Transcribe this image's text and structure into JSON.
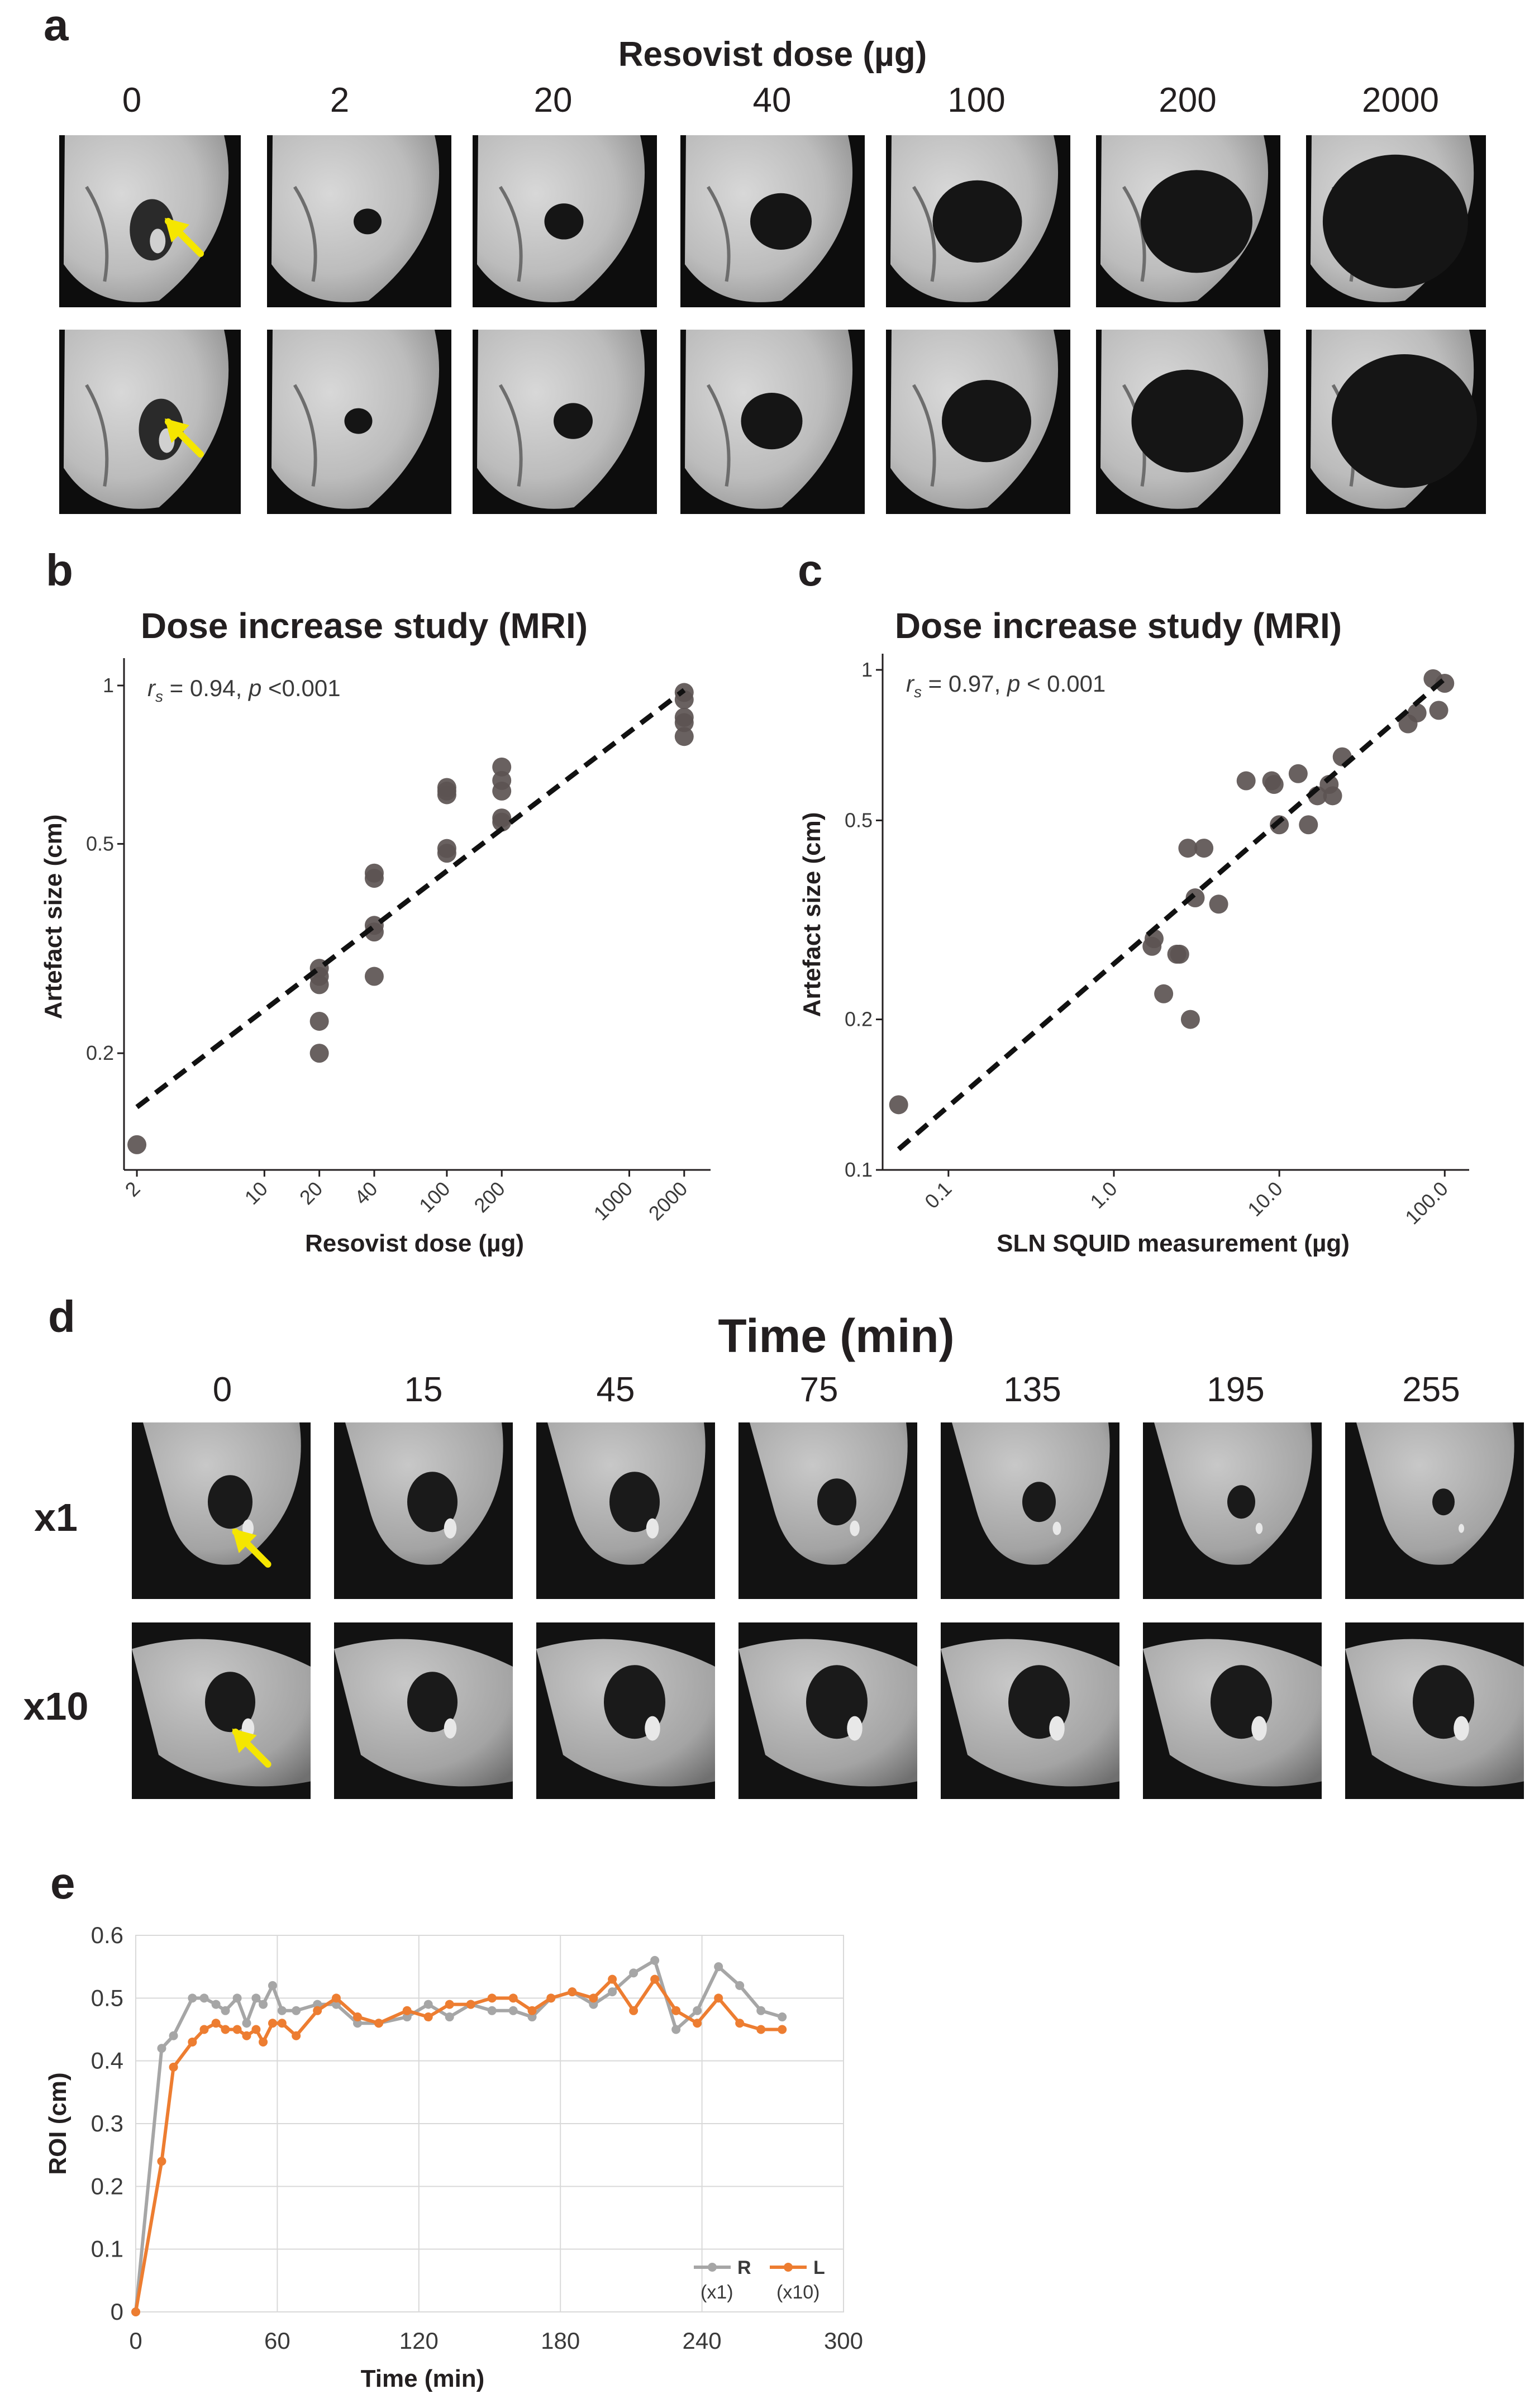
{
  "panel_a": {
    "letter": "a",
    "title": "Resovist dose (µg)",
    "columns": [
      "0",
      "2",
      "20",
      "40",
      "100",
      "200",
      "2000"
    ]
  },
  "panel_d": {
    "letter": "d",
    "title": "Time (min)",
    "columns": [
      "0",
      "15",
      "45",
      "75",
      "135",
      "195",
      "255"
    ],
    "rows": [
      "x1",
      "x10"
    ]
  },
  "chart_data": [
    {
      "id": "b",
      "letter": "b",
      "type": "scatter",
      "title": "Dose increase study (MRI)",
      "xlabel": "Resovist dose (µg)",
      "ylabel": "Artefact size (cm)",
      "xscale": "log",
      "yscale": "log",
      "xlim": [
        1.7,
        2600
      ],
      "ylim": [
        0.12,
        1.1
      ],
      "xticks": [
        2,
        10,
        20,
        40,
        100,
        200,
        1000,
        2000
      ],
      "xtick_labels": [
        "2",
        "10",
        "20",
        "40",
        "100",
        "200",
        "1000",
        "2000"
      ],
      "yticks": [
        0.2,
        0.5,
        1
      ],
      "ytick_labels": [
        "0.2",
        "0.5",
        "1"
      ],
      "annotation": {
        "r_symbol": "r",
        "r_sub": "s",
        "r_text": " = 0.94, ",
        "p_symbol": "p",
        "p_text": " <0.001"
      },
      "fit_line": {
        "x": [
          2,
          2000
        ],
        "y": [
          0.158,
          0.98
        ]
      },
      "points": [
        {
          "x": 2,
          "y": 0.134
        },
        {
          "x": 20,
          "y": 0.2
        },
        {
          "x": 20,
          "y": 0.23
        },
        {
          "x": 20,
          "y": 0.27
        },
        {
          "x": 20,
          "y": 0.28
        },
        {
          "x": 20,
          "y": 0.29
        },
        {
          "x": 40,
          "y": 0.28
        },
        {
          "x": 40,
          "y": 0.34
        },
        {
          "x": 40,
          "y": 0.35
        },
        {
          "x": 40,
          "y": 0.43
        },
        {
          "x": 40,
          "y": 0.44
        },
        {
          "x": 100,
          "y": 0.48
        },
        {
          "x": 100,
          "y": 0.49
        },
        {
          "x": 100,
          "y": 0.62
        },
        {
          "x": 100,
          "y": 0.63
        },
        {
          "x": 100,
          "y": 0.64
        },
        {
          "x": 200,
          "y": 0.55
        },
        {
          "x": 200,
          "y": 0.56
        },
        {
          "x": 200,
          "y": 0.63
        },
        {
          "x": 200,
          "y": 0.66
        },
        {
          "x": 200,
          "y": 0.7
        },
        {
          "x": 2000,
          "y": 0.8
        },
        {
          "x": 2000,
          "y": 0.85
        },
        {
          "x": 2000,
          "y": 0.87
        },
        {
          "x": 2000,
          "y": 0.94
        },
        {
          "x": 2000,
          "y": 0.97
        }
      ]
    },
    {
      "id": "c",
      "letter": "c",
      "type": "scatter",
      "title": "Dose increase study (MRI)",
      "xlabel": "SLN SQUID measurement (µg)",
      "ylabel": "Artefact size (cm)",
      "xscale": "log",
      "yscale": "log",
      "xlim": [
        0.04,
        130
      ],
      "ylim": [
        0.1,
        1.05
      ],
      "xticks": [
        0.1,
        1.0,
        10.0,
        100.0
      ],
      "xtick_labels": [
        "0.1",
        "1.0",
        "10.0",
        "100.0"
      ],
      "yticks": [
        0.1,
        0.2,
        0.5,
        1
      ],
      "ytick_labels": [
        "0.1",
        "0.2",
        "0.5",
        "1"
      ],
      "annotation": {
        "r_symbol": "r",
        "r_sub": "s",
        "r_text": " = 0.97, ",
        "p_symbol": "p",
        "p_text": " < 0.001"
      },
      "fit_line": {
        "x": [
          0.05,
          100
        ],
        "y": [
          0.11,
          0.96
        ]
      },
      "points": [
        {
          "x": 0.05,
          "y": 0.135
        },
        {
          "x": 1.7,
          "y": 0.28
        },
        {
          "x": 1.75,
          "y": 0.29
        },
        {
          "x": 2.0,
          "y": 0.225
        },
        {
          "x": 2.4,
          "y": 0.27
        },
        {
          "x": 2.5,
          "y": 0.27
        },
        {
          "x": 2.8,
          "y": 0.44
        },
        {
          "x": 2.9,
          "y": 0.2
        },
        {
          "x": 3.1,
          "y": 0.35
        },
        {
          "x": 3.5,
          "y": 0.44
        },
        {
          "x": 4.3,
          "y": 0.34
        },
        {
          "x": 6.3,
          "y": 0.6
        },
        {
          "x": 9.0,
          "y": 0.6
        },
        {
          "x": 9.3,
          "y": 0.59
        },
        {
          "x": 10.0,
          "y": 0.49
        },
        {
          "x": 13.0,
          "y": 0.62
        },
        {
          "x": 15.0,
          "y": 0.49
        },
        {
          "x": 17.0,
          "y": 0.56
        },
        {
          "x": 20.0,
          "y": 0.59
        },
        {
          "x": 21.0,
          "y": 0.56
        },
        {
          "x": 24.0,
          "y": 0.67
        },
        {
          "x": 60.0,
          "y": 0.78
        },
        {
          "x": 68.0,
          "y": 0.82
        },
        {
          "x": 85.0,
          "y": 0.96
        },
        {
          "x": 92.0,
          "y": 0.83
        },
        {
          "x": 100.0,
          "y": 0.94
        }
      ]
    },
    {
      "id": "e",
      "letter": "e",
      "type": "line",
      "title": "",
      "xlabel": "Time (min)",
      "ylabel": "ROI (cm)",
      "xlim": [
        0,
        300
      ],
      "ylim": [
        0,
        0.6
      ],
      "xticks": [
        0,
        60,
        120,
        180,
        240,
        300
      ],
      "xtick_labels": [
        "0",
        "60",
        "120",
        "180",
        "240",
        "300"
      ],
      "yticks": [
        0,
        0.1,
        0.2,
        0.3,
        0.4,
        0.5,
        0.6
      ],
      "ytick_labels": [
        "0",
        "0.1",
        "0.2",
        "0.3",
        "0.4",
        "0.5",
        "0.6"
      ],
      "grid": true,
      "legend_position": "bottom-right",
      "series": [
        {
          "name": "R",
          "sublabel": "(x1)",
          "color": "#a6a6a6",
          "x": [
            0,
            11,
            16,
            24,
            29,
            34,
            38,
            43,
            47,
            51,
            54,
            58,
            62,
            68,
            77,
            85,
            94,
            103,
            115,
            124,
            133,
            142,
            151,
            160,
            168,
            176,
            185,
            194,
            202,
            211,
            220,
            229,
            238,
            247,
            256,
            265,
            274
          ],
          "y": [
            0,
            0.42,
            0.44,
            0.5,
            0.5,
            0.49,
            0.48,
            0.5,
            0.46,
            0.5,
            0.49,
            0.52,
            0.48,
            0.48,
            0.49,
            0.49,
            0.46,
            0.46,
            0.47,
            0.49,
            0.47,
            0.49,
            0.48,
            0.48,
            0.47,
            0.5,
            0.51,
            0.49,
            0.51,
            0.54,
            0.56,
            0.45,
            0.48,
            0.55,
            0.52,
            0.48,
            0.47
          ]
        },
        {
          "name": "L",
          "sublabel": "(x10)",
          "color": "#ed7d31",
          "x": [
            0,
            11,
            16,
            24,
            29,
            34,
            38,
            43,
            47,
            51,
            54,
            58,
            62,
            68,
            77,
            85,
            94,
            103,
            115,
            124,
            133,
            142,
            151,
            160,
            168,
            176,
            185,
            194,
            202,
            211,
            220,
            229,
            238,
            247,
            256,
            265,
            274
          ],
          "y": [
            0,
            0.24,
            0.39,
            0.43,
            0.45,
            0.46,
            0.45,
            0.45,
            0.44,
            0.45,
            0.43,
            0.46,
            0.46,
            0.44,
            0.48,
            0.5,
            0.47,
            0.46,
            0.48,
            0.47,
            0.49,
            0.49,
            0.5,
            0.5,
            0.48,
            0.5,
            0.51,
            0.5,
            0.53,
            0.48,
            0.53,
            0.48,
            0.46,
            0.5,
            0.46,
            0.45,
            0.45
          ]
        }
      ]
    }
  ]
}
